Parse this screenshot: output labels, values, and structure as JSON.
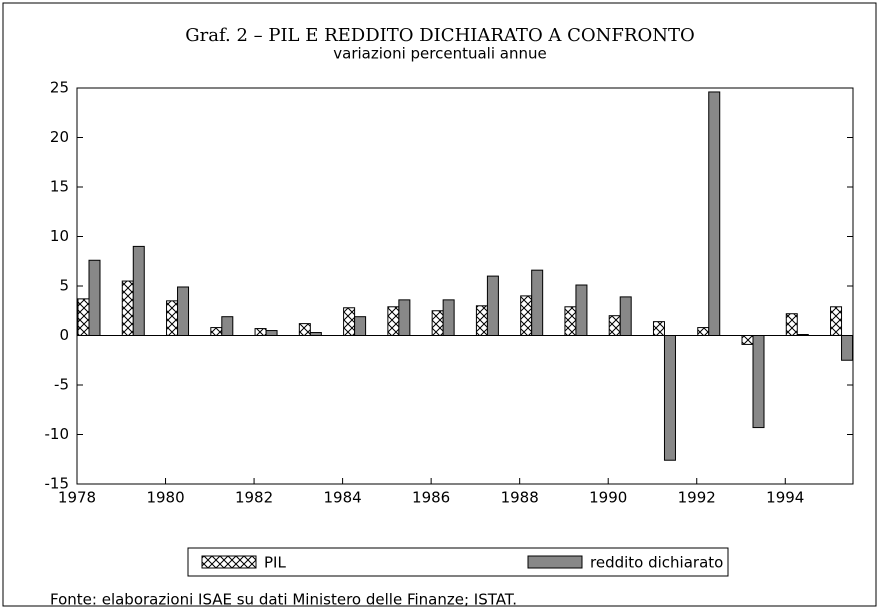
{
  "chart_data": {
    "type": "bar",
    "title": "Graf. 2 – PIL E REDDITO DICHIARATO A CONFRONTO",
    "subtitle": "variazioni percentuali annue",
    "note": "Fonte: elaborazioni ISAE su dati Ministero delle Finanze; ISTAT.",
    "x": [
      1978,
      1979,
      1980,
      1981,
      1982,
      1983,
      1984,
      1985,
      1986,
      1987,
      1988,
      1989,
      1990,
      1991,
      1992,
      1993,
      1994,
      1995
    ],
    "series": [
      {
        "name": "PIL",
        "color": "#ffffff",
        "pattern": "crosshatch",
        "values": [
          3.7,
          5.5,
          3.5,
          0.8,
          0.7,
          1.2,
          2.8,
          2.9,
          2.5,
          3.0,
          4.0,
          2.9,
          2.0,
          1.4,
          0.8,
          -0.9,
          2.2,
          2.9
        ]
      },
      {
        "name": "reddito dichiarato",
        "color": "#888888",
        "values": [
          7.6,
          9.0,
          4.9,
          1.9,
          0.5,
          0.3,
          1.9,
          3.6,
          3.6,
          6.0,
          6.6,
          5.1,
          3.9,
          -12.6,
          24.6,
          -9.3,
          0.1,
          -2.5
        ]
      }
    ],
    "xlim": [
      1978,
      1995.53
    ],
    "xticks": [
      1978,
      1980,
      1982,
      1984,
      1986,
      1988,
      1990,
      1992,
      1994
    ],
    "ylim": [
      -15,
      25
    ],
    "yticks": [
      -15,
      -10,
      -5,
      0,
      5,
      10,
      15,
      20,
      25
    ],
    "legend": "bottom"
  }
}
